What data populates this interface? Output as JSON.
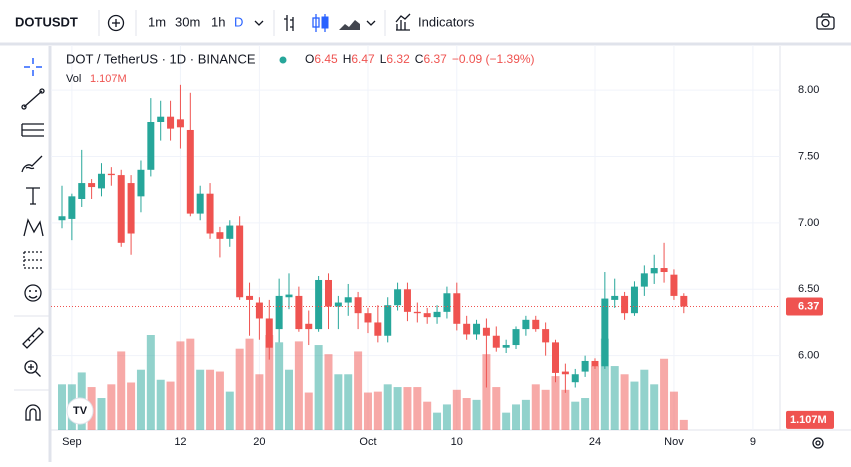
{
  "toolbar": {
    "symbol": "DOTUSDT",
    "intervals": [
      "1m",
      "30m",
      "1h",
      "D"
    ],
    "indicators": "Indicators"
  },
  "chart_data": {
    "type": "candlestick",
    "title": "DOT / TetherUS · 1D · BINANCE",
    "ohlc_letters": [
      "O",
      "H",
      "L",
      "C"
    ],
    "change": "−0.09 (−1.39%)",
    "volume_label": "Vol",
    "up_color": "#26a69a",
    "down_color": "#ef5350",
    "categories": [
      null,
      "Sep",
      null,
      null,
      null,
      null,
      null,
      null,
      null,
      null,
      null,
      null,
      "12",
      null,
      null,
      null,
      null,
      null,
      null,
      null,
      "20",
      null,
      null,
      null,
      null,
      null,
      null,
      null,
      null,
      null,
      null,
      "Oct",
      null,
      null,
      null,
      null,
      null,
      null,
      null,
      null,
      "10",
      null,
      null,
      null,
      null,
      null,
      null,
      null,
      null,
      null,
      null,
      null,
      null,
      null,
      "24",
      null,
      null,
      null,
      null,
      null,
      null,
      null,
      "Nov",
      null,
      null,
      null,
      null,
      null,
      null,
      null,
      "9"
    ],
    "series": {
      "open": [
        7.02,
        7.03,
        7.18,
        7.3,
        7.26,
        7.37,
        7.36,
        7.3,
        7.2,
        7.4,
        7.76,
        7.8,
        7.78,
        7.7,
        7.07,
        7.22,
        6.93,
        6.88,
        6.98,
        6.45,
        6.4,
        6.28,
        6.2,
        6.44,
        6.45,
        6.24,
        6.2,
        6.57,
        6.37,
        6.4,
        6.44,
        6.32,
        6.25,
        6.15,
        6.38,
        6.5,
        6.33,
        6.32,
        6.29,
        6.33,
        6.47,
        6.24,
        6.16,
        6.21,
        6.15,
        6.06,
        6.08,
        6.2,
        6.27,
        6.2,
        6.1,
        5.88,
        5.8,
        5.88,
        5.96,
        5.92,
        6.42,
        6.45,
        6.32,
        6.52,
        6.62,
        6.66,
        6.61,
        6.45,
        null,
        null,
        null,
        null,
        null,
        null,
        null
      ],
      "high": [
        7.28,
        7.22,
        7.55,
        7.33,
        7.45,
        7.42,
        7.4,
        7.36,
        7.47,
        7.94,
        7.92,
        7.92,
        8.04,
        7.98,
        7.28,
        7.3,
        6.97,
        7.02,
        7.05,
        6.55,
        6.44,
        6.42,
        6.58,
        6.62,
        6.52,
        6.34,
        6.6,
        6.62,
        6.45,
        6.54,
        6.48,
        6.36,
        6.38,
        6.44,
        6.55,
        6.55,
        6.4,
        6.36,
        6.38,
        6.52,
        6.55,
        6.3,
        6.27,
        6.28,
        6.22,
        6.12,
        6.22,
        6.3,
        6.3,
        6.25,
        6.12,
        5.94,
        5.9,
        6.0,
        5.98,
        6.63,
        6.58,
        6.48,
        6.56,
        6.68,
        6.76,
        6.85,
        6.65,
        6.47,
        null,
        null,
        null,
        null,
        null,
        null,
        null
      ],
      "low": [
        6.96,
        6.87,
        7.12,
        7.18,
        7.2,
        7.28,
        6.82,
        6.76,
        7.08,
        7.35,
        7.62,
        7.62,
        7.56,
        7.05,
        7.02,
        6.88,
        6.74,
        6.82,
        6.42,
        6.15,
        6.12,
        5.97,
        6.1,
        6.35,
        6.18,
        6.08,
        6.18,
        6.2,
        6.2,
        6.3,
        6.2,
        6.17,
        6.1,
        6.1,
        6.34,
        6.26,
        6.25,
        6.24,
        6.24,
        6.28,
        6.19,
        6.12,
        6.12,
        5.76,
        6.03,
        6.02,
        6.05,
        6.15,
        6.18,
        6.0,
        5.8,
        5.72,
        5.76,
        5.84,
        5.9,
        5.9,
        6.36,
        6.27,
        6.3,
        6.45,
        6.54,
        6.55,
        6.42,
        6.32,
        null,
        null,
        null,
        null,
        null,
        null,
        null
      ],
      "close": [
        7.05,
        7.2,
        7.3,
        7.27,
        7.37,
        7.36,
        6.85,
        6.92,
        7.4,
        7.76,
        7.8,
        7.71,
        7.72,
        7.07,
        7.22,
        6.92,
        6.88,
        6.98,
        6.44,
        6.42,
        6.28,
        6.06,
        6.45,
        6.46,
        6.2,
        6.2,
        6.57,
        6.37,
        6.4,
        6.44,
        6.32,
        6.25,
        6.15,
        6.38,
        6.5,
        6.33,
        6.32,
        6.29,
        6.33,
        6.47,
        6.24,
        6.16,
        6.24,
        6.15,
        6.06,
        6.08,
        6.2,
        6.27,
        6.2,
        6.1,
        5.87,
        5.86,
        5.86,
        5.96,
        5.92,
        6.43,
        6.45,
        6.32,
        6.52,
        6.62,
        6.66,
        6.63,
        6.45,
        6.37,
        null,
        null,
        null,
        null,
        null,
        null,
        null
      ],
      "volume": [
        5.0,
        5.0,
        6.3,
        4.7,
        3.5,
        5.0,
        8.6,
        5.2,
        6.6,
        10.4,
        5.5,
        5.3,
        9.7,
        10.0,
        6.6,
        6.6,
        6.4,
        4.2,
        8.9,
        10.0,
        6.1,
        10.4,
        9.6,
        6.6,
        9.7,
        4.1,
        9.3,
        8.3,
        6.1,
        6.1,
        8.6,
        4.1,
        4.2,
        5.0,
        4.7,
        4.7,
        4.7,
        3.1,
        1.9,
        2.8,
        4.4,
        3.5,
        3.3,
        8.3,
        4.7,
        1.9,
        2.8,
        3.3,
        5.0,
        4.4,
        5.9,
        4.4,
        3.1,
        3.5,
        7.0,
        10.0,
        7.0,
        6.1,
        5.3,
        6.6,
        5.0,
        7.8,
        4.2,
        1.107,
        null,
        null,
        null,
        null,
        null,
        null,
        null
      ],
      "value_labels": {
        "63": "1.107M"
      }
    },
    "ylim": [
      5.44,
      8.34
    ],
    "yticks": [
      {
        "value": 6,
        "label": "6.00"
      },
      {
        "value": 6.5,
        "label": "6.50"
      },
      {
        "value": 7,
        "label": "7.00"
      },
      {
        "value": 7.5,
        "label": "7.50"
      },
      {
        "value": 8,
        "label": "8.00"
      }
    ],
    "grid": true
  }
}
